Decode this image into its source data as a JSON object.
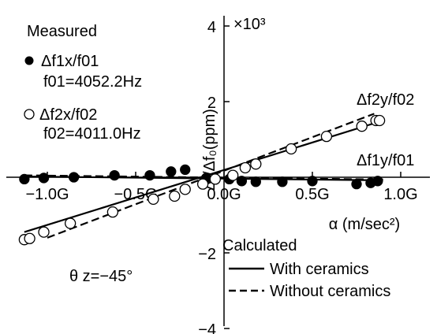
{
  "chart_data": {
    "type": "scatter",
    "x_unit": "G",
    "xlabel": "α (m/sec²)",
    "ylabel": "Δf/Δf₀(ppm)",
    "y_multiplier_label": "×10³",
    "xlim": [
      -1.25,
      1.0
    ],
    "ylim": [
      -4,
      4
    ],
    "x_ticks": [
      -1.0,
      -0.5,
      0.0,
      0.5,
      1.0
    ],
    "x_tick_labels": [
      "−1.0G",
      "−0.5G",
      "0.0G",
      "0.5G",
      "1.0G"
    ],
    "y_ticks": [
      -4,
      -2,
      2,
      4
    ],
    "y_tick_labels": [
      "−4",
      "−2",
      "2",
      "4"
    ],
    "series": [
      {
        "name": "Δf1x/f01",
        "marker": "filled-circle",
        "x": [
          -1.13,
          -1.02,
          -0.85,
          -0.62,
          -0.42,
          -0.3,
          -0.22,
          -0.1,
          0.03,
          0.1,
          0.18,
          0.33,
          0.5,
          0.75,
          0.83,
          0.87
        ],
        "y": [
          -0.05,
          -0.02,
          0.0,
          0.05,
          0.05,
          0.15,
          0.2,
          -0.02,
          -0.05,
          -0.1,
          -0.12,
          -0.12,
          -0.1,
          -0.18,
          -0.15,
          -0.1
        ]
      },
      {
        "name": "Δf2x/f02",
        "marker": "open-circle",
        "x": [
          -1.13,
          -1.1,
          -1.02,
          -0.87,
          -0.63,
          -0.4,
          -0.28,
          -0.22,
          -0.12,
          -0.05,
          0.05,
          0.12,
          0.18,
          0.38,
          0.58,
          0.78,
          0.86,
          0.88
        ],
        "y": [
          -1.65,
          -1.62,
          -1.45,
          -1.22,
          -0.92,
          -0.58,
          -0.5,
          -0.32,
          -0.18,
          -0.05,
          0.05,
          0.25,
          0.35,
          0.75,
          1.08,
          1.35,
          1.5,
          1.5
        ]
      }
    ],
    "calculated_lines": [
      {
        "style": "solid",
        "x": [
          -1.13,
          0.9
        ],
        "y": [
          -1.45,
          1.5
        ]
      },
      {
        "style": "dashed",
        "x": [
          -1.0,
          0.85
        ],
        "y": [
          -1.6,
          1.68
        ]
      },
      {
        "style": "solid",
        "x": [
          -1.13,
          0.9
        ],
        "y": [
          0.02,
          -0.08
        ]
      },
      {
        "style": "dashed",
        "x": [
          -1.13,
          0.9
        ],
        "y": [
          0.05,
          -0.06
        ]
      }
    ],
    "curve_labels": {
      "upper": "Δf2y/f02",
      "lower": "Δf1y/f01"
    },
    "legend_measured": {
      "title": "Measured",
      "item1": "Δf1x/f01",
      "item1_note": "f01=4052.2Hz",
      "item2": "Δf2x/f02",
      "item2_note": "f02=4011.0Hz"
    },
    "legend_calculated": {
      "title": "Calculated",
      "with": "With ceramics",
      "without": "Without ceramics"
    },
    "annotation": "θ z=−45°"
  }
}
